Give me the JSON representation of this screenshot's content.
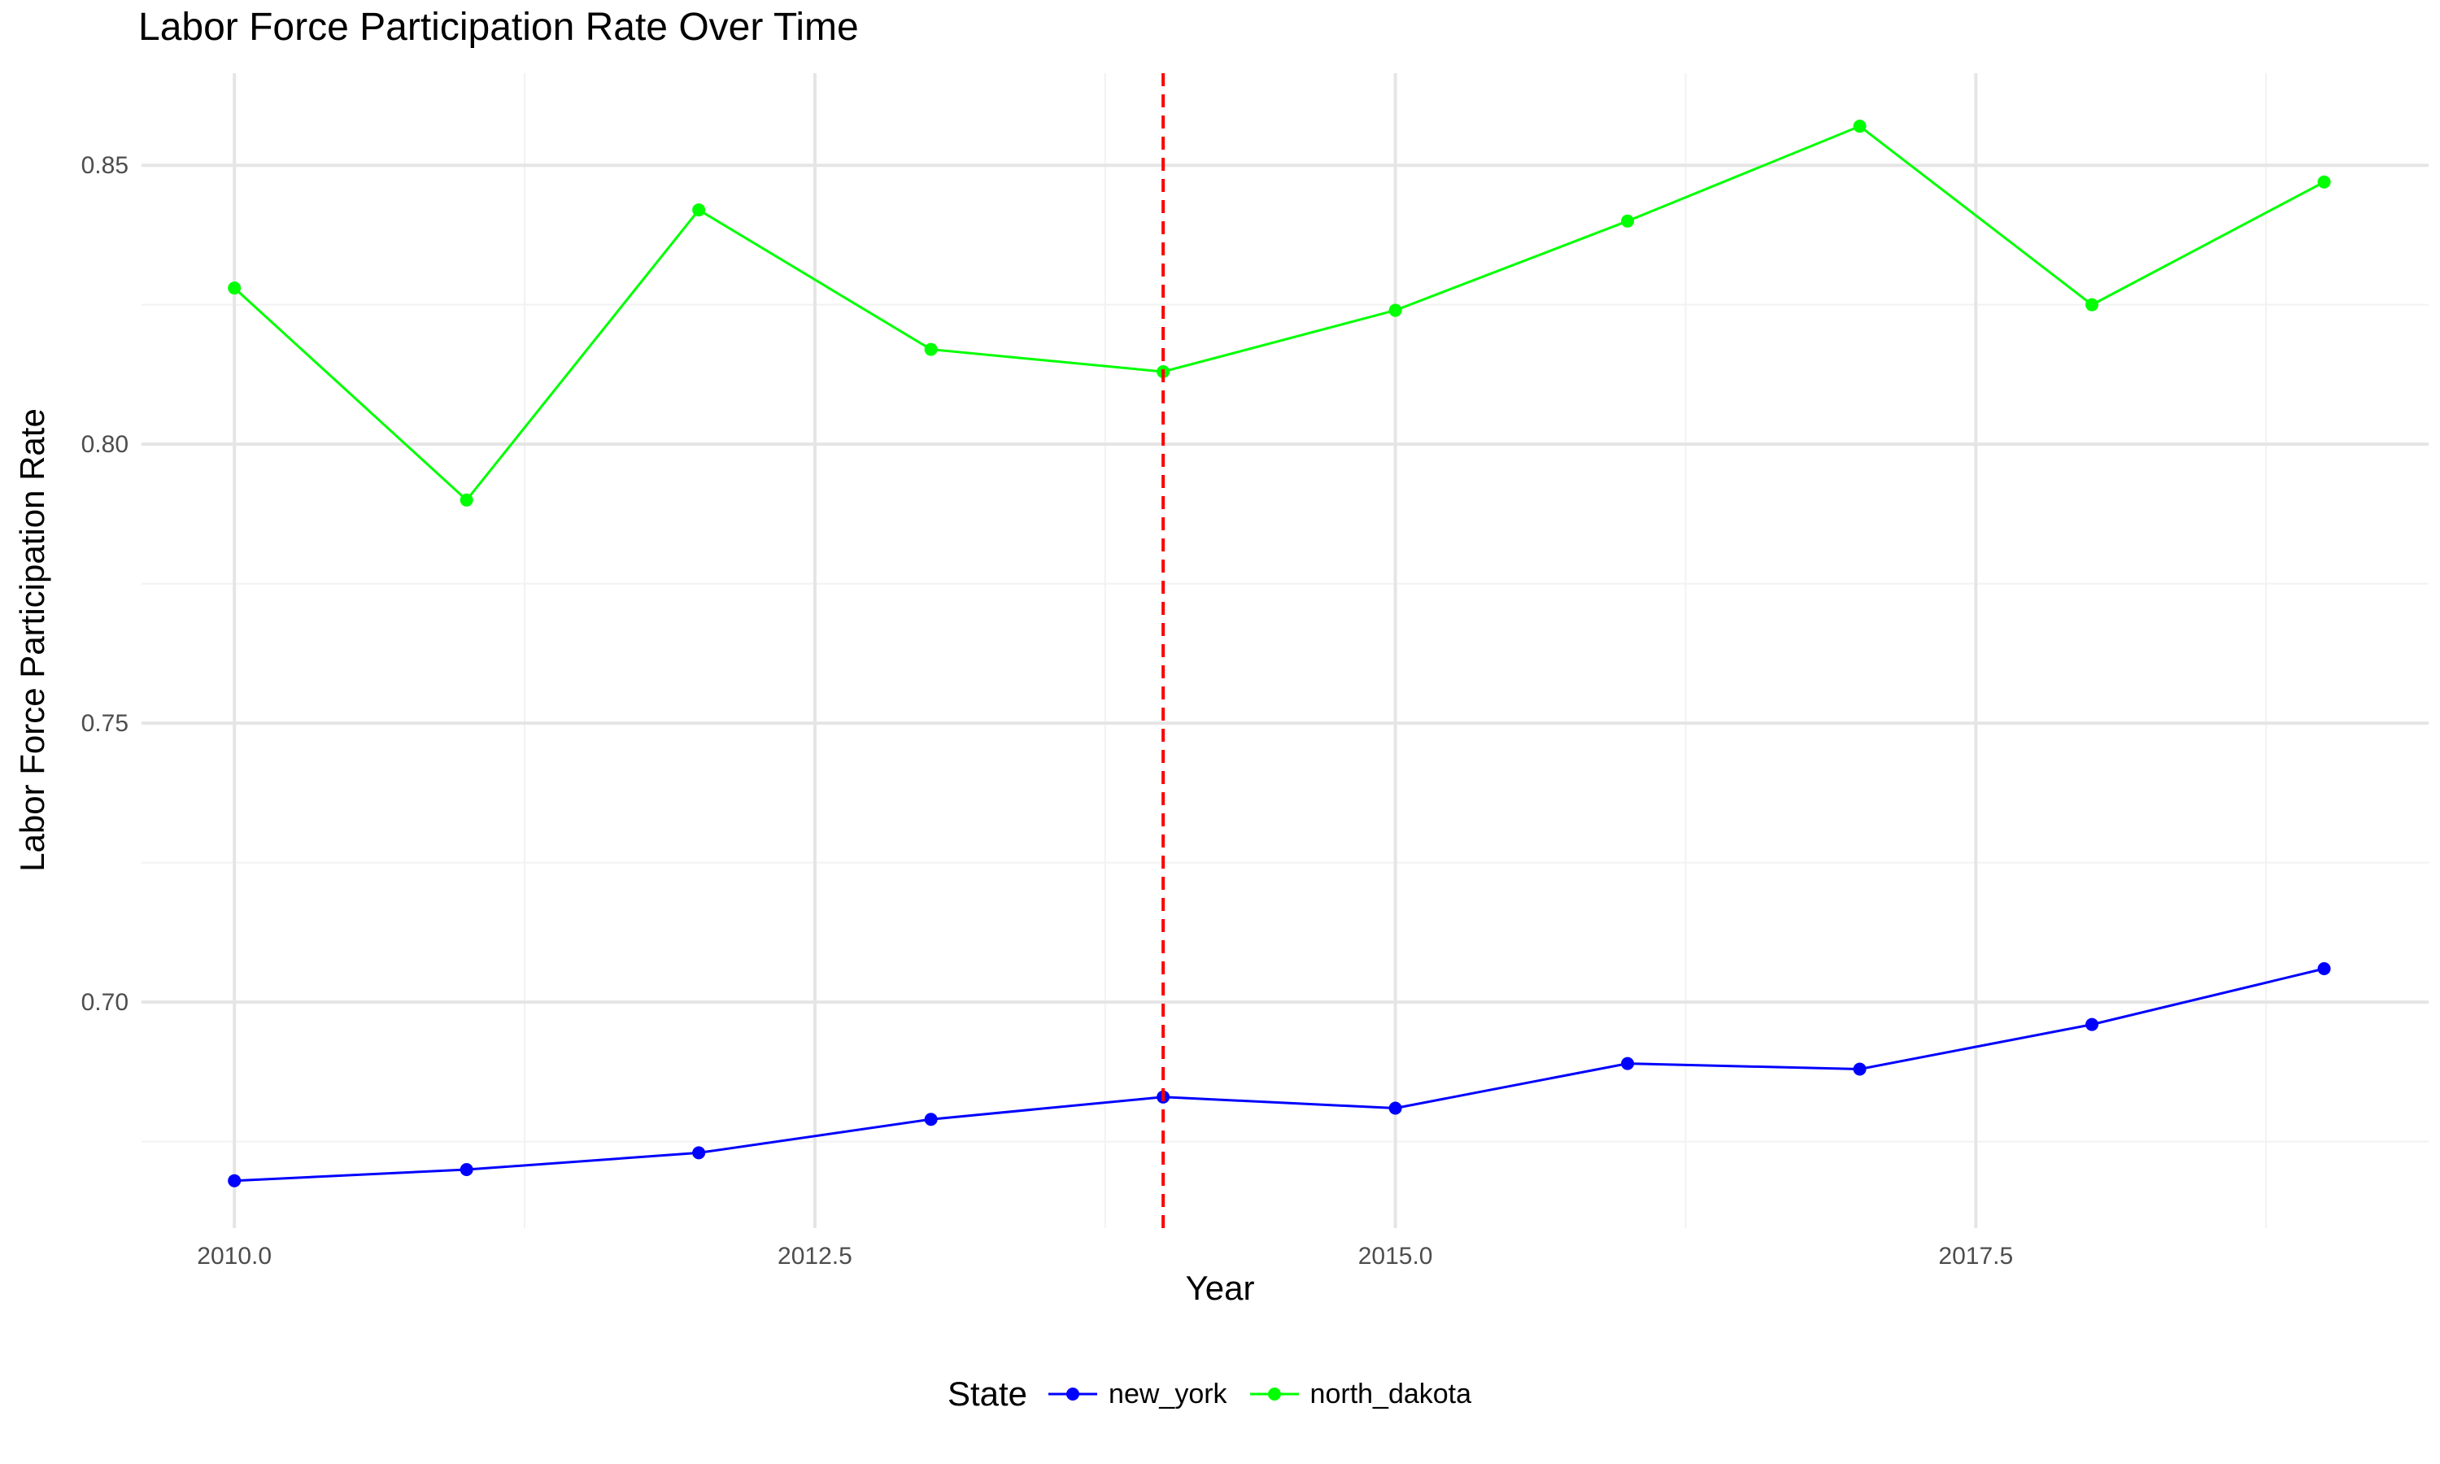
{
  "chart_data": {
    "type": "line",
    "title": "Labor Force Participation Rate Over Time",
    "xlabel": "Year",
    "ylabel": "Labor Force Participation Rate",
    "x": [
      2010,
      2011,
      2012,
      2013,
      2014,
      2015,
      2016,
      2017,
      2018,
      2019
    ],
    "series": [
      {
        "name": "new_york",
        "color": "#0000ff",
        "values": [
          0.668,
          0.67,
          0.673,
          0.679,
          0.683,
          0.681,
          0.689,
          0.688,
          0.696,
          0.706
        ]
      },
      {
        "name": "north_dakota",
        "color": "#00ff00",
        "values": [
          0.828,
          0.79,
          0.842,
          0.817,
          0.813,
          0.824,
          0.84,
          0.857,
          0.825,
          0.847
        ]
      }
    ],
    "xlim": [
      2009.6,
      2019.45
    ],
    "ylim": [
      0.6595,
      0.8665
    ],
    "xticks": [
      2010.0,
      2012.5,
      2015.0,
      2017.5
    ],
    "xtick_labels": [
      "2010.0",
      "2012.5",
      "2015.0",
      "2017.5"
    ],
    "yticks": [
      0.7,
      0.75,
      0.8,
      0.85
    ],
    "ytick_labels": [
      "0.70",
      "0.75",
      "0.80",
      "0.85"
    ],
    "vline": {
      "x": 2014,
      "color": "#ff0000",
      "style": "dashed"
    },
    "grid": true,
    "legend": {
      "title": "State",
      "position": "bottom"
    }
  }
}
